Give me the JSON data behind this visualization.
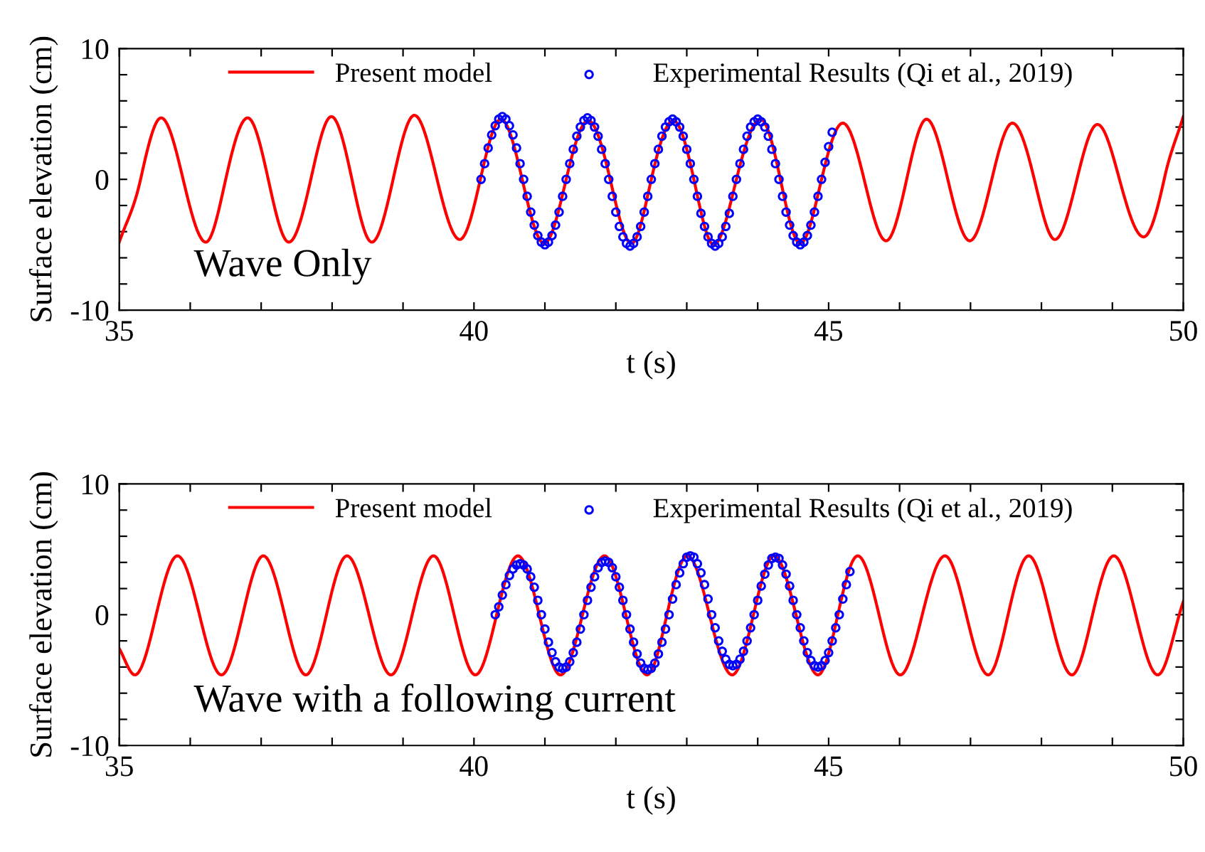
{
  "chart_data": [
    {
      "type": "line",
      "xlabel": "t (s)",
      "ylabel": "Surface elevation (cm)",
      "xlim": [
        35,
        50
      ],
      "ylim": [
        -10,
        10
      ],
      "xticks": [
        35,
        {
          "value": 36,
          "label": null
        },
        {
          "value": 37,
          "label": null
        },
        {
          "value": 38,
          "label": null
        },
        {
          "value": 39,
          "label": null
        },
        40,
        {
          "value": 41,
          "label": null
        },
        {
          "value": 42,
          "label": null
        },
        {
          "value": 43,
          "label": null
        },
        {
          "value": 44,
          "label": null
        },
        45,
        {
          "value": 46,
          "label": null
        },
        {
          "value": 47,
          "label": null
        },
        {
          "value": 48,
          "label": null
        },
        {
          "value": 49,
          "label": null
        },
        50
      ],
      "yticks": [
        -10,
        {
          "value": -8,
          "label": null
        },
        {
          "value": -6,
          "label": null
        },
        {
          "value": -4,
          "label": null
        },
        {
          "value": -2,
          "label": null
        },
        0,
        {
          "value": 2,
          "label": null
        },
        {
          "value": 4,
          "label": null
        },
        {
          "value": 6,
          "label": null
        },
        {
          "value": 8,
          "label": null
        },
        10
      ],
      "legend": "top",
      "grid": false,
      "annotations": [
        "Wave Only"
      ],
      "series": [
        {
          "name": "Present model",
          "color": "#ff0000",
          "marker": "none",
          "line_style": "solid",
          "x": [
            35.0,
            35.3,
            35.59,
            35.9,
            36.22,
            36.5,
            36.81,
            37.1,
            37.39,
            37.7,
            37.99,
            38.28,
            38.56,
            38.86,
            39.16,
            39.48,
            39.8,
            40.09,
            40.38,
            40.68,
            40.99,
            41.3,
            41.61,
            41.92,
            42.22,
            42.5,
            42.81,
            43.1,
            43.38,
            43.7,
            44.04,
            44.32,
            44.6,
            44.9,
            45.2,
            45.5,
            45.81,
            46.1,
            46.38,
            46.68,
            46.99,
            47.3,
            47.59,
            47.9,
            48.19,
            48.5,
            48.79,
            49.1,
            49.44,
            49.73,
            50.0
          ],
          "values": [
            -4.8,
            0,
            4.7,
            0,
            -4.8,
            0,
            4.7,
            0,
            -4.8,
            0,
            4.8,
            0,
            -4.8,
            0,
            4.9,
            0,
            -4.6,
            0,
            4.6,
            0,
            -4.9,
            0,
            4.5,
            0,
            -4.9,
            0,
            4.5,
            0,
            -5.0,
            0,
            4.6,
            0,
            -4.9,
            0,
            4.3,
            0,
            -4.7,
            0,
            4.6,
            0,
            -4.7,
            0,
            4.3,
            0,
            -4.6,
            0,
            4.2,
            0,
            -4.4,
            0,
            4.8
          ]
        },
        {
          "name": "Experimental Results (Qi et al., 2019)",
          "type": "scatter",
          "color": "#0000ff",
          "marker": "circle",
          "x": [
            40.1,
            40.15,
            40.2,
            40.25,
            40.3,
            40.35,
            40.4,
            40.45,
            40.5,
            40.55,
            40.6,
            40.65,
            40.7,
            40.75,
            40.8,
            40.85,
            40.9,
            40.95,
            41.0,
            41.05,
            41.1,
            41.15,
            41.2,
            41.25,
            41.3,
            41.35,
            41.4,
            41.45,
            41.5,
            41.55,
            41.6,
            41.65,
            41.7,
            41.75,
            41.8,
            41.85,
            41.9,
            41.95,
            42.0,
            42.05,
            42.1,
            42.15,
            42.2,
            42.25,
            42.3,
            42.35,
            42.4,
            42.45,
            42.5,
            42.55,
            42.6,
            42.65,
            42.7,
            42.75,
            42.8,
            42.85,
            42.9,
            42.95,
            43.0,
            43.05,
            43.1,
            43.15,
            43.2,
            43.25,
            43.3,
            43.35,
            43.4,
            43.45,
            43.5,
            43.55,
            43.6,
            43.65,
            43.7,
            43.75,
            43.8,
            43.85,
            43.9,
            43.95,
            44.0,
            44.05,
            44.1,
            44.15,
            44.2,
            44.25,
            44.3,
            44.35,
            44.4,
            44.45,
            44.5,
            44.55,
            44.6,
            44.65,
            44.7,
            44.75,
            44.8,
            44.85,
            44.9,
            44.95,
            45.0,
            45.05
          ],
          "values": [
            0.0,
            1.2,
            2.4,
            3.4,
            4.1,
            4.6,
            4.8,
            4.6,
            4.1,
            3.4,
            2.4,
            1.2,
            0.0,
            -1.3,
            -2.5,
            -3.5,
            -4.3,
            -4.8,
            -5.0,
            -4.8,
            -4.3,
            -3.5,
            -2.5,
            -1.3,
            0.0,
            1.2,
            2.3,
            3.3,
            4.0,
            4.5,
            4.7,
            4.5,
            4.0,
            3.3,
            2.3,
            1.2,
            0.0,
            -1.3,
            -2.5,
            -3.6,
            -4.4,
            -4.9,
            -5.1,
            -4.9,
            -4.4,
            -3.6,
            -2.5,
            -1.3,
            0.0,
            1.2,
            2.3,
            3.3,
            4.0,
            4.4,
            4.6,
            4.4,
            4.0,
            3.3,
            2.3,
            1.2,
            0.0,
            -1.3,
            -2.6,
            -3.6,
            -4.4,
            -4.9,
            -5.1,
            -4.9,
            -4.4,
            -3.6,
            -2.6,
            -1.3,
            0.0,
            1.2,
            2.3,
            3.3,
            4.0,
            4.4,
            4.6,
            4.4,
            4.0,
            3.3,
            2.3,
            1.2,
            0.0,
            -1.3,
            -2.5,
            -3.5,
            -4.3,
            -4.8,
            -5.0,
            -4.8,
            -4.3,
            -3.5,
            -2.5,
            -1.3,
            0.0,
            1.3,
            2.5,
            3.6
          ]
        }
      ]
    },
    {
      "type": "line",
      "xlabel": "t (s)",
      "ylabel": "Surface elevation (cm)",
      "xlim": [
        35,
        50
      ],
      "ylim": [
        -10,
        10
      ],
      "xticks": [
        35,
        {
          "value": 36,
          "label": null
        },
        {
          "value": 37,
          "label": null
        },
        {
          "value": 38,
          "label": null
        },
        {
          "value": 39,
          "label": null
        },
        40,
        {
          "value": 41,
          "label": null
        },
        {
          "value": 42,
          "label": null
        },
        {
          "value": 43,
          "label": null
        },
        {
          "value": 44,
          "label": null
        },
        45,
        {
          "value": 46,
          "label": null
        },
        {
          "value": 47,
          "label": null
        },
        {
          "value": 48,
          "label": null
        },
        {
          "value": 49,
          "label": null
        },
        50
      ],
      "yticks": [
        -10,
        {
          "value": -8,
          "label": null
        },
        {
          "value": -6,
          "label": null
        },
        {
          "value": -4,
          "label": null
        },
        {
          "value": -2,
          "label": null
        },
        0,
        {
          "value": 2,
          "label": null
        },
        {
          "value": 4,
          "label": null
        },
        {
          "value": 6,
          "label": null
        },
        {
          "value": 8,
          "label": null
        },
        10
      ],
      "legend": "top",
      "grid": false,
      "annotations": [
        "Wave with a following current"
      ],
      "series": [
        {
          "name": "Present model",
          "color": "#ff0000",
          "marker": "none",
          "line_style": "solid",
          "x": [
            35.0,
            35.22,
            35.52,
            35.82,
            36.13,
            36.44,
            36.74,
            37.03,
            37.33,
            37.63,
            37.92,
            38.21,
            38.52,
            38.83,
            39.13,
            39.43,
            39.72,
            40.02,
            40.32,
            40.62,
            40.92,
            41.22,
            41.53,
            41.84,
            42.14,
            42.44,
            42.72,
            43.01,
            43.32,
            43.64,
            43.94,
            44.23,
            44.54,
            44.85,
            45.13,
            45.41,
            45.71,
            46.01,
            46.32,
            46.64,
            46.94,
            47.25,
            47.53,
            47.82,
            48.12,
            48.43,
            48.72,
            49.02,
            49.33,
            49.64,
            50.0
          ],
          "values": [
            -2.6,
            -4.6,
            0,
            4.5,
            0,
            -4.6,
            0,
            4.5,
            0,
            -4.6,
            0,
            4.5,
            0,
            -4.6,
            0,
            4.5,
            0,
            -4.6,
            0,
            4.5,
            0,
            -4.6,
            0,
            4.5,
            0,
            -4.6,
            0,
            4.5,
            0,
            -4.6,
            0,
            4.5,
            0,
            -4.6,
            0,
            4.5,
            0,
            -4.6,
            0,
            4.5,
            0,
            -4.6,
            0,
            4.5,
            0,
            -4.6,
            0,
            4.5,
            0,
            -4.6,
            1.0
          ]
        },
        {
          "name": "Experimental Results (Qi et al., 2019)",
          "type": "scatter",
          "color": "#0000ff",
          "marker": "circle",
          "x": [
            40.3,
            40.35,
            40.4,
            40.45,
            40.5,
            40.55,
            40.6,
            40.65,
            40.7,
            40.75,
            40.8,
            40.85,
            40.9,
            40.95,
            41.0,
            41.05,
            41.1,
            41.15,
            41.2,
            41.25,
            41.3,
            41.35,
            41.4,
            41.45,
            41.5,
            41.55,
            41.6,
            41.65,
            41.7,
            41.75,
            41.8,
            41.85,
            41.9,
            41.95,
            42.0,
            42.05,
            42.1,
            42.15,
            42.2,
            42.25,
            42.3,
            42.35,
            42.4,
            42.45,
            42.5,
            42.55,
            42.6,
            42.65,
            42.7,
            42.75,
            42.8,
            42.85,
            42.9,
            42.95,
            43.0,
            43.05,
            43.1,
            43.15,
            43.2,
            43.25,
            43.3,
            43.35,
            43.4,
            43.45,
            43.5,
            43.55,
            43.6,
            43.65,
            43.7,
            43.75,
            43.8,
            43.85,
            43.9,
            43.95,
            44.0,
            44.05,
            44.1,
            44.15,
            44.2,
            44.25,
            44.3,
            44.35,
            44.4,
            44.45,
            44.5,
            44.55,
            44.6,
            44.65,
            44.7,
            44.75,
            44.8,
            44.85,
            44.9,
            44.95,
            45.0,
            45.05,
            45.1,
            45.15,
            45.2,
            45.25,
            45.3
          ],
          "values": [
            0.0,
            0.6,
            1.5,
            2.3,
            3.0,
            3.5,
            3.8,
            3.9,
            3.8,
            3.5,
            2.9,
            2.1,
            1.1,
            0.0,
            -1.1,
            -2.1,
            -2.9,
            -3.6,
            -4.0,
            -4.1,
            -4.0,
            -3.6,
            -2.9,
            -2.1,
            -1.1,
            0.0,
            1.1,
            2.1,
            2.9,
            3.6,
            4.0,
            4.1,
            4.0,
            3.6,
            2.9,
            2.1,
            1.1,
            0.0,
            -1.1,
            -2.1,
            -3.0,
            -3.7,
            -4.1,
            -4.2,
            -4.1,
            -3.7,
            -3.0,
            -2.1,
            -1.1,
            0.0,
            1.2,
            2.3,
            3.2,
            3.9,
            4.4,
            4.5,
            4.4,
            3.9,
            3.2,
            2.3,
            1.2,
            0.0,
            -1.0,
            -2.0,
            -2.8,
            -3.4,
            -3.8,
            -3.9,
            -3.8,
            -3.4,
            -2.8,
            -2.0,
            -1.0,
            0.0,
            1.1,
            2.2,
            3.1,
            3.8,
            4.3,
            4.4,
            4.3,
            3.8,
            3.1,
            2.2,
            1.1,
            0.0,
            -1.0,
            -2.0,
            -2.9,
            -3.5,
            -3.9,
            -4.0,
            -3.9,
            -3.5,
            -2.9,
            -2.0,
            -1.0,
            0.0,
            1.2,
            2.3,
            3.3
          ]
        }
      ]
    }
  ]
}
